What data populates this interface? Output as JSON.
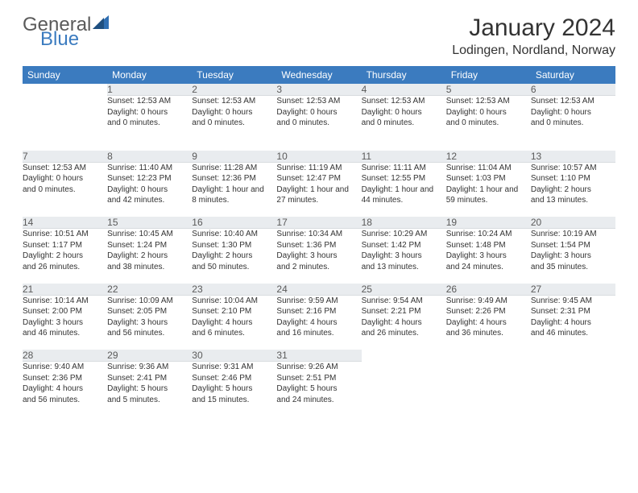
{
  "logo": {
    "text_general": "General",
    "text_blue": "Blue",
    "sail_color": "#2f6fb3"
  },
  "title": "January 2024",
  "location": "Lodingen, Nordland, Norway",
  "day_headers": [
    "Sunday",
    "Monday",
    "Tuesday",
    "Wednesday",
    "Thursday",
    "Friday",
    "Saturday"
  ],
  "colors": {
    "header_bg": "#3b7bbf",
    "header_text": "#ffffff",
    "daynum_bg": "#e9ecef",
    "daynum_text": "#5a5a5a",
    "body_text": "#333333",
    "logo_gray": "#5a5a5a",
    "logo_blue": "#3b7bbf"
  },
  "typography": {
    "title_fontsize": 30,
    "location_fontsize": 16,
    "header_fontsize": 12,
    "daynum_fontsize": 12,
    "detail_fontsize": 10
  },
  "weeks": [
    {
      "nums": [
        "",
        "1",
        "2",
        "3",
        "4",
        "5",
        "6"
      ],
      "details": [
        [],
        [
          "Sunset: 12:53 AM",
          "Daylight: 0 hours",
          "and 0 minutes."
        ],
        [
          "Sunset: 12:53 AM",
          "Daylight: 0 hours",
          "and 0 minutes."
        ],
        [
          "Sunset: 12:53 AM",
          "Daylight: 0 hours",
          "and 0 minutes."
        ],
        [
          "Sunset: 12:53 AM",
          "Daylight: 0 hours",
          "and 0 minutes."
        ],
        [
          "Sunset: 12:53 AM",
          "Daylight: 0 hours",
          "and 0 minutes."
        ],
        [
          "Sunset: 12:53 AM",
          "Daylight: 0 hours",
          "and 0 minutes."
        ]
      ]
    },
    {
      "nums": [
        "7",
        "8",
        "9",
        "10",
        "11",
        "12",
        "13"
      ],
      "details": [
        [
          "Sunset: 12:53 AM",
          "Daylight: 0 hours",
          "and 0 minutes."
        ],
        [
          "Sunrise: 11:40 AM",
          "Sunset: 12:23 PM",
          "Daylight: 0 hours",
          "and 42 minutes."
        ],
        [
          "Sunrise: 11:28 AM",
          "Sunset: 12:36 PM",
          "Daylight: 1 hour and",
          "8 minutes."
        ],
        [
          "Sunrise: 11:19 AM",
          "Sunset: 12:47 PM",
          "Daylight: 1 hour and",
          "27 minutes."
        ],
        [
          "Sunrise: 11:11 AM",
          "Sunset: 12:55 PM",
          "Daylight: 1 hour and",
          "44 minutes."
        ],
        [
          "Sunrise: 11:04 AM",
          "Sunset: 1:03 PM",
          "Daylight: 1 hour and",
          "59 minutes."
        ],
        [
          "Sunrise: 10:57 AM",
          "Sunset: 1:10 PM",
          "Daylight: 2 hours",
          "and 13 minutes."
        ]
      ]
    },
    {
      "nums": [
        "14",
        "15",
        "16",
        "17",
        "18",
        "19",
        "20"
      ],
      "details": [
        [
          "Sunrise: 10:51 AM",
          "Sunset: 1:17 PM",
          "Daylight: 2 hours",
          "and 26 minutes."
        ],
        [
          "Sunrise: 10:45 AM",
          "Sunset: 1:24 PM",
          "Daylight: 2 hours",
          "and 38 minutes."
        ],
        [
          "Sunrise: 10:40 AM",
          "Sunset: 1:30 PM",
          "Daylight: 2 hours",
          "and 50 minutes."
        ],
        [
          "Sunrise: 10:34 AM",
          "Sunset: 1:36 PM",
          "Daylight: 3 hours",
          "and 2 minutes."
        ],
        [
          "Sunrise: 10:29 AM",
          "Sunset: 1:42 PM",
          "Daylight: 3 hours",
          "and 13 minutes."
        ],
        [
          "Sunrise: 10:24 AM",
          "Sunset: 1:48 PM",
          "Daylight: 3 hours",
          "and 24 minutes."
        ],
        [
          "Sunrise: 10:19 AM",
          "Sunset: 1:54 PM",
          "Daylight: 3 hours",
          "and 35 minutes."
        ]
      ]
    },
    {
      "nums": [
        "21",
        "22",
        "23",
        "24",
        "25",
        "26",
        "27"
      ],
      "details": [
        [
          "Sunrise: 10:14 AM",
          "Sunset: 2:00 PM",
          "Daylight: 3 hours",
          "and 46 minutes."
        ],
        [
          "Sunrise: 10:09 AM",
          "Sunset: 2:05 PM",
          "Daylight: 3 hours",
          "and 56 minutes."
        ],
        [
          "Sunrise: 10:04 AM",
          "Sunset: 2:10 PM",
          "Daylight: 4 hours",
          "and 6 minutes."
        ],
        [
          "Sunrise: 9:59 AM",
          "Sunset: 2:16 PM",
          "Daylight: 4 hours",
          "and 16 minutes."
        ],
        [
          "Sunrise: 9:54 AM",
          "Sunset: 2:21 PM",
          "Daylight: 4 hours",
          "and 26 minutes."
        ],
        [
          "Sunrise: 9:49 AM",
          "Sunset: 2:26 PM",
          "Daylight: 4 hours",
          "and 36 minutes."
        ],
        [
          "Sunrise: 9:45 AM",
          "Sunset: 2:31 PM",
          "Daylight: 4 hours",
          "and 46 minutes."
        ]
      ]
    },
    {
      "nums": [
        "28",
        "29",
        "30",
        "31",
        "",
        "",
        ""
      ],
      "details": [
        [
          "Sunrise: 9:40 AM",
          "Sunset: 2:36 PM",
          "Daylight: 4 hours",
          "and 56 minutes."
        ],
        [
          "Sunrise: 9:36 AM",
          "Sunset: 2:41 PM",
          "Daylight: 5 hours",
          "and 5 minutes."
        ],
        [
          "Sunrise: 9:31 AM",
          "Sunset: 2:46 PM",
          "Daylight: 5 hours",
          "and 15 minutes."
        ],
        [
          "Sunrise: 9:26 AM",
          "Sunset: 2:51 PM",
          "Daylight: 5 hours",
          "and 24 minutes."
        ],
        [],
        [],
        []
      ]
    }
  ]
}
